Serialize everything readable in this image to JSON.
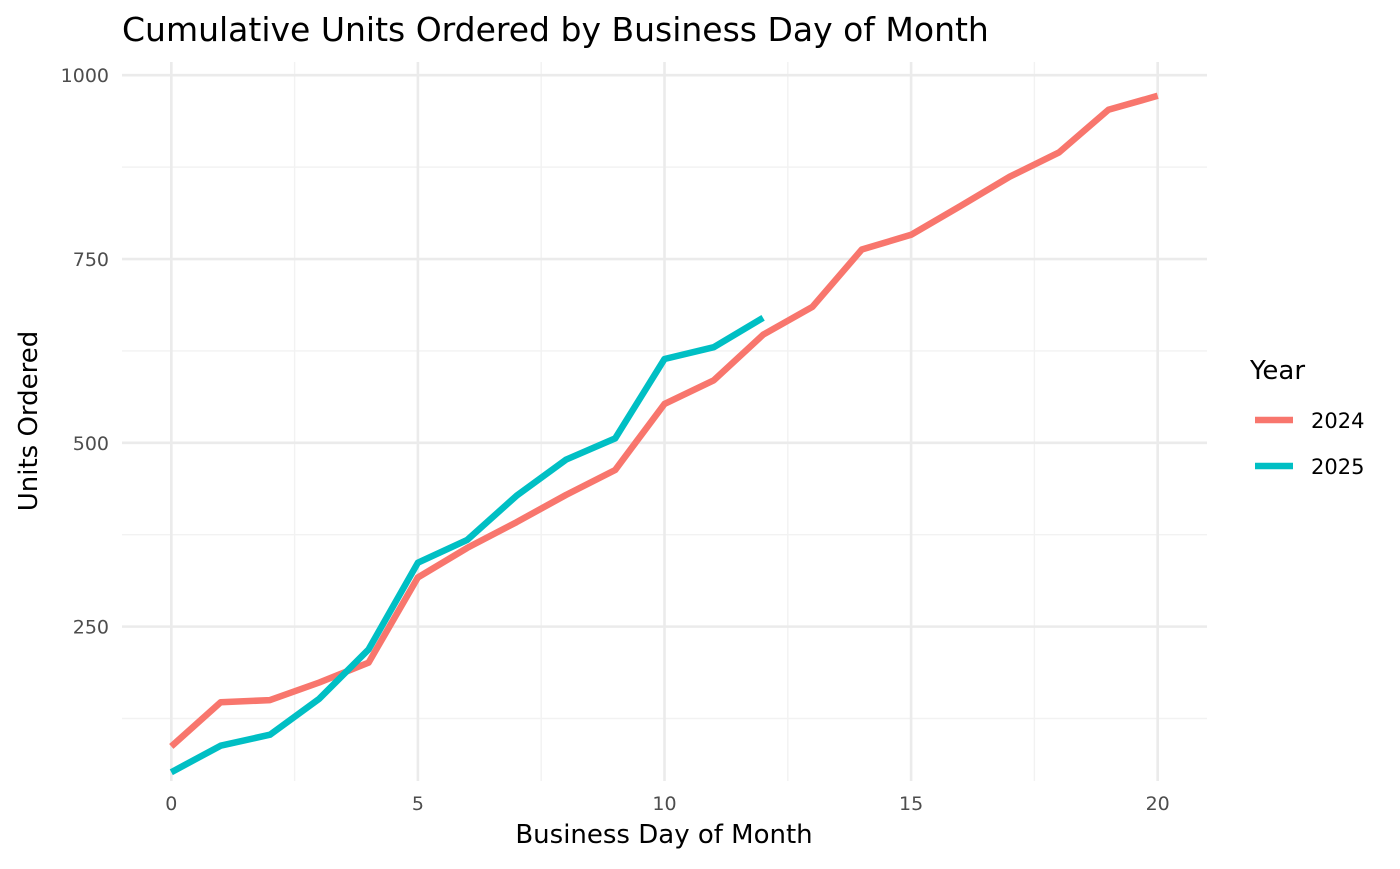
{
  "chart_data": {
    "type": "line",
    "title": "Cumulative Units Ordered by Business Day of Month",
    "xlabel": "Business Day of Month",
    "ylabel": "Units Ordered",
    "xlim": [
      -1,
      21
    ],
    "ylim": [
      40,
      1018
    ],
    "x_ticks": [
      0,
      5,
      10,
      15,
      20
    ],
    "y_ticks": [
      250,
      500,
      750,
      1000
    ],
    "x_minor": [
      2.5,
      7.5,
      12.5,
      17.5
    ],
    "y_minor": [
      125,
      375,
      625,
      875
    ],
    "grid": true,
    "legend": {
      "title": "Year",
      "position": "right"
    },
    "series": [
      {
        "name": "2024",
        "color": "#F8766D",
        "x": [
          0,
          1,
          2,
          3,
          4,
          5,
          6,
          7,
          8,
          9,
          10,
          11,
          12,
          13,
          14,
          15,
          16,
          17,
          18,
          19,
          20
        ],
        "y": [
          87,
          147,
          150,
          174,
          201,
          317,
          357,
          392,
          429,
          463,
          553,
          585,
          647,
          685,
          763,
          783,
          822,
          862,
          895,
          953,
          972
        ]
      },
      {
        "name": "2025",
        "color": "#00BFC4",
        "x": [
          0,
          1,
          2,
          3,
          4,
          5,
          6,
          7,
          8,
          9,
          10,
          11,
          12
        ],
        "y": [
          52,
          88,
          103,
          152,
          219,
          337,
          368,
          428,
          477,
          506,
          614,
          630,
          670
        ]
      }
    ]
  }
}
